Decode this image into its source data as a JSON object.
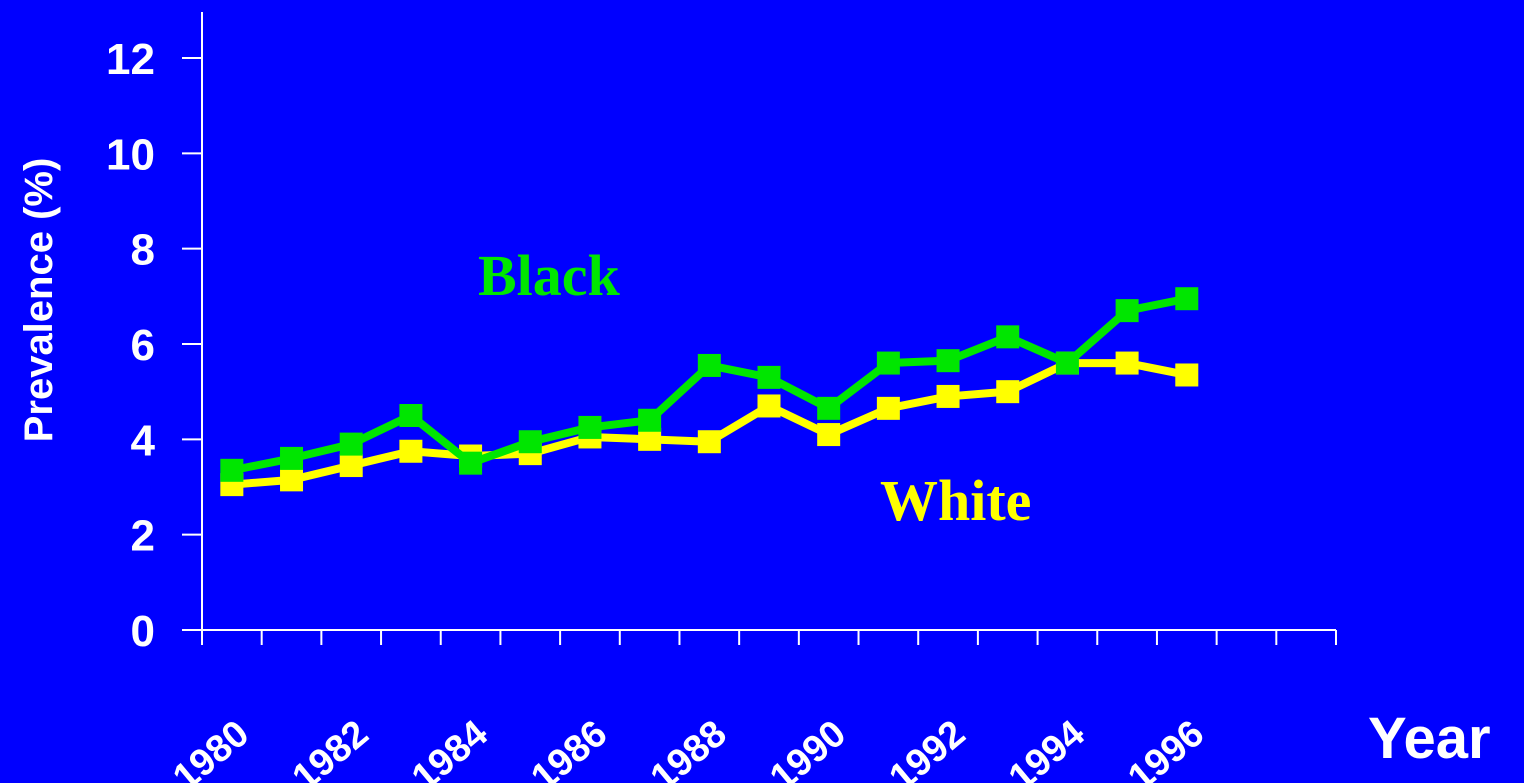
{
  "chart_data": {
    "type": "line",
    "title": "",
    "xlabel": "Year",
    "ylabel": "Prevalence (%)",
    "xlim": [
      1980,
      1999
    ],
    "ylim": [
      0,
      12
    ],
    "yticks": [
      0,
      2,
      4,
      6,
      8,
      10,
      12
    ],
    "xtick_labels": [
      "1980",
      "1982",
      "1984",
      "1986",
      "1988",
      "1990",
      "1992",
      "1994",
      "1996"
    ],
    "xtick_label_positions": [
      1980,
      1982,
      1984,
      1986,
      1988,
      1990,
      1992,
      1994,
      1996
    ],
    "grid": false,
    "legend": "none",
    "x": [
      1980.5,
      1981.5,
      1982.5,
      1983.5,
      1984.5,
      1985.5,
      1986.5,
      1987.5,
      1988.5,
      1989.5,
      1990.5,
      1991.5,
      1992.5,
      1993.5,
      1994.5,
      1995.5,
      1996.5
    ],
    "series": [
      {
        "name": "Black",
        "color": "#00e600",
        "label_text": "Black",
        "values": [
          3.35,
          3.6,
          3.9,
          4.5,
          3.5,
          3.95,
          4.25,
          4.4,
          5.55,
          5.3,
          4.65,
          5.6,
          5.65,
          6.15,
          5.6,
          6.7,
          6.95
        ]
      },
      {
        "name": "White",
        "color": "#ffff00",
        "label_text": "White",
        "values": [
          3.05,
          3.15,
          3.45,
          3.75,
          3.65,
          3.7,
          4.05,
          4.0,
          3.95,
          4.7,
          4.1,
          4.65,
          4.9,
          5.0,
          5.6,
          5.6,
          5.35
        ]
      }
    ]
  }
}
